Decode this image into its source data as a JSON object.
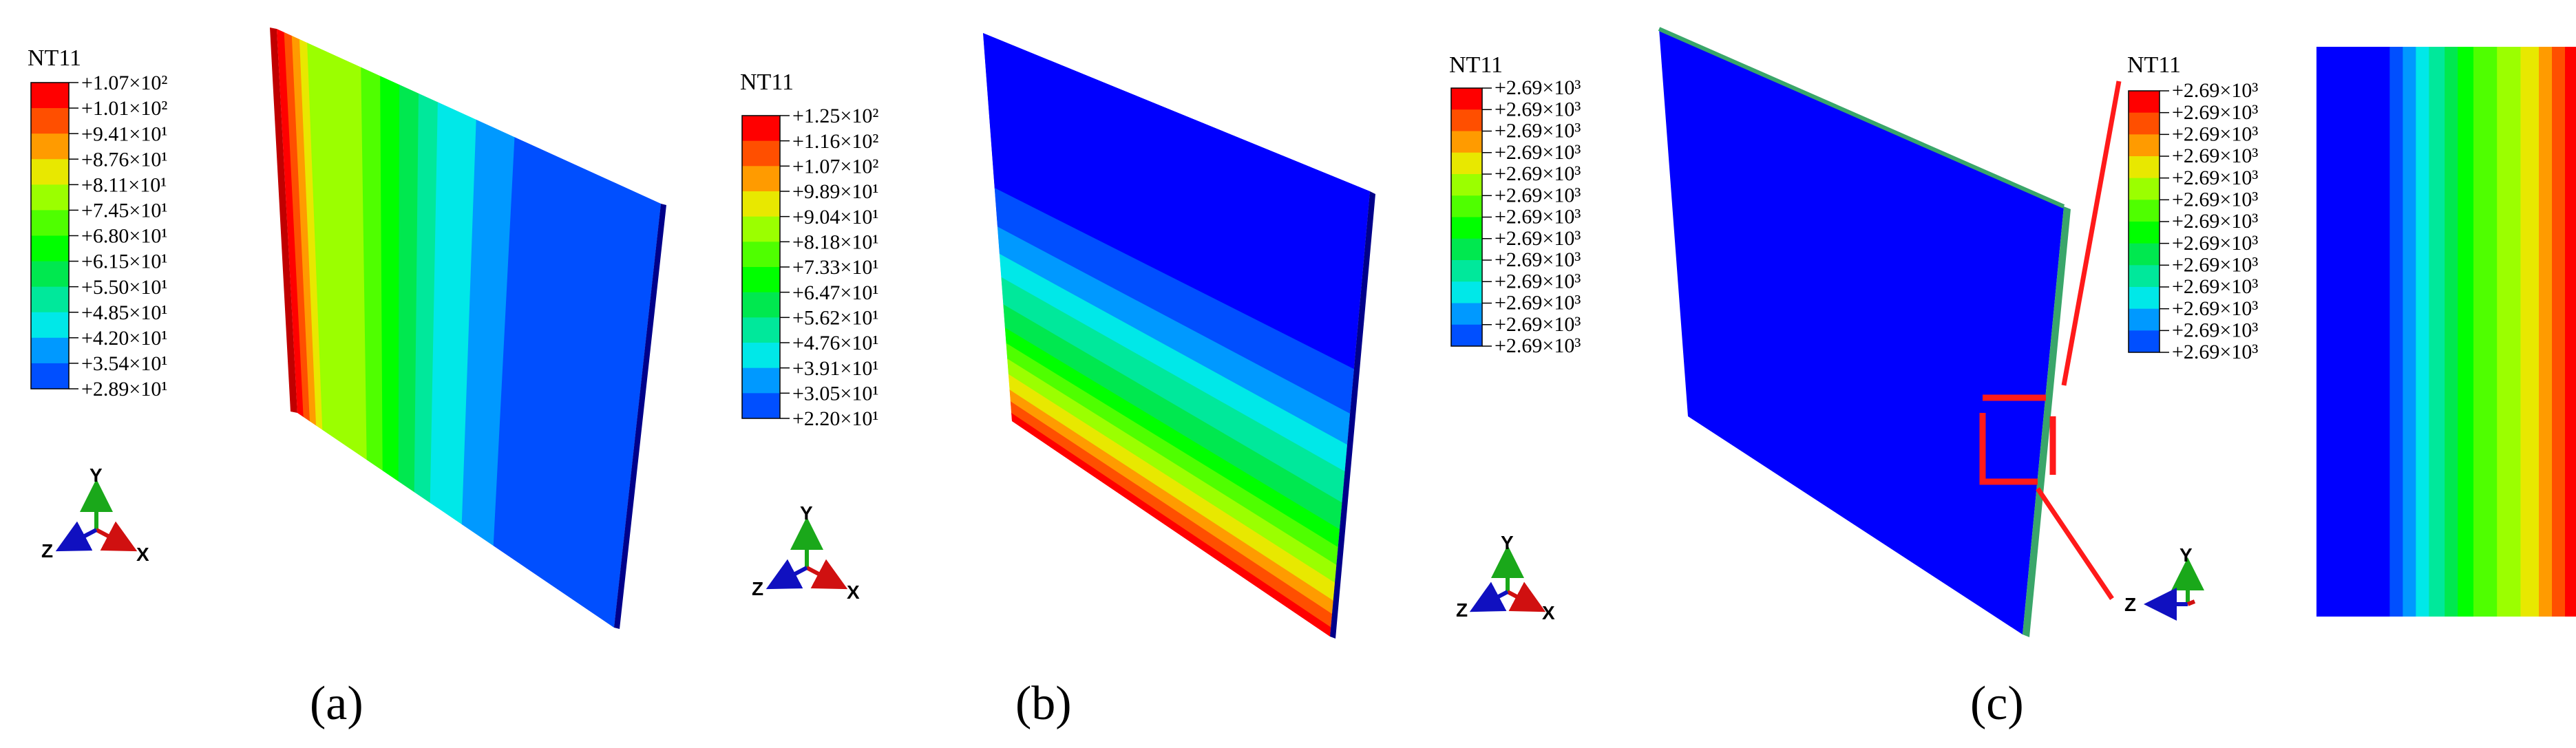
{
  "panels": [
    {
      "label": "(a)",
      "legend": {
        "title": "NT11",
        "values": [
          "+1.07×10²",
          "+1.01×10²",
          "+9.41×10¹",
          "+8.76×10¹",
          "+8.11×10¹",
          "+7.45×10¹",
          "+6.80×10¹",
          "+6.15×10¹",
          "+5.50×10¹",
          "+4.85×10¹",
          "+4.20×10¹",
          "+3.54×10¹",
          "+2.89×10¹"
        ]
      },
      "triad": {
        "y": "Y",
        "z": "Z",
        "x": "X"
      },
      "gradient_direction": "horizontal, hot on left edge"
    },
    {
      "label": "(b)",
      "legend": {
        "title": "NT11",
        "values": [
          "+1.25×10²",
          "+1.16×10²",
          "+1.07×10²",
          "+9.89×10¹",
          "+9.04×10¹",
          "+8.18×10¹",
          "+7.33×10¹",
          "+6.47×10¹",
          "+5.62×10¹",
          "+4.76×10¹",
          "+3.91×10¹",
          "+3.05×10¹",
          "+2.20×10¹"
        ]
      },
      "triad": {
        "y": "Y",
        "z": "Z",
        "x": "X"
      },
      "gradient_direction": "vertical, hot on bottom edge"
    },
    {
      "label": "(c)",
      "legend": {
        "title": "NT11",
        "values": [
          "+2.69×10³",
          "+2.69×10³",
          "+2.69×10³",
          "+2.69×10³",
          "+2.69×10³",
          "+2.69×10³",
          "+2.69×10³",
          "+2.69×10³",
          "+2.69×10³",
          "+2.69×10³",
          "+2.69×10³",
          "+2.69×10³",
          "+2.69×10³"
        ]
      },
      "legend_zoom": {
        "title": "NT11",
        "values": [
          "+2.69×10³",
          "+2.69×10³",
          "+2.69×10³",
          "+2.69×10³",
          "+2.69×10³",
          "+2.69×10³",
          "+2.69×10³",
          "+2.69×10³",
          "+2.69×10³",
          "+2.69×10³",
          "+2.69×10³",
          "+2.69×10³",
          "+2.69×10³"
        ]
      },
      "triad": {
        "y": "Y",
        "z": "Z",
        "x": "X"
      },
      "triad_zoom": {
        "y": "Y",
        "z": "Z"
      },
      "gradient_direction": "uniform blue plate, detail view shows through-thickness gradient"
    }
  ],
  "colormap": [
    "#ff0000",
    "#ff4f00",
    "#ff9b00",
    "#e8e800",
    "#9bff00",
    "#4fff00",
    "#00ff00",
    "#00e84f",
    "#00e89b",
    "#00e8e8",
    "#0099ff",
    "#004fff",
    "#0000ff"
  ]
}
